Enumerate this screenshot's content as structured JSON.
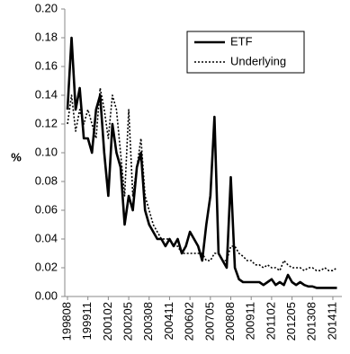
{
  "chart_data": {
    "type": "line",
    "ylabel": "%",
    "categories": [
      "199808",
      null,
      null,
      null,
      null,
      "199911",
      null,
      null,
      null,
      null,
      "200102",
      null,
      null,
      null,
      null,
      "200205",
      null,
      null,
      null,
      null,
      "200308",
      null,
      null,
      null,
      null,
      "200411",
      null,
      null,
      null,
      null,
      "200602",
      null,
      null,
      null,
      null,
      "200705",
      null,
      null,
      null,
      null,
      "200808",
      null,
      null,
      null,
      null,
      "200911",
      null,
      null,
      null,
      null,
      "201102",
      null,
      null,
      null,
      null,
      "201205",
      null,
      null,
      null,
      null,
      "201308",
      null,
      null,
      null,
      null,
      "201411",
      null
    ],
    "series": [
      {
        "name": "ETF",
        "color": "#000000",
        "style": "solid",
        "values": [
          0.13,
          0.18,
          0.13,
          0.145,
          0.11,
          0.11,
          0.1,
          0.13,
          0.14,
          0.1,
          0.07,
          0.12,
          0.1,
          0.09,
          0.05,
          0.07,
          0.06,
          0.09,
          0.1,
          0.06,
          0.05,
          0.045,
          0.04,
          0.04,
          0.035,
          0.04,
          0.035,
          0.04,
          0.03,
          0.035,
          0.045,
          0.04,
          0.035,
          0.025,
          0.05,
          0.07,
          0.125,
          0.03,
          0.025,
          0.02,
          0.083,
          0.02,
          0.012,
          0.01,
          0.01,
          0.01,
          0.01,
          0.01,
          0.008,
          0.01,
          0.012,
          0.008,
          0.01,
          0.008,
          0.015,
          0.01,
          0.008,
          0.01,
          0.008,
          0.007,
          0.007,
          0.006,
          0.006,
          0.006,
          0.006,
          0.006,
          0.006
        ]
      },
      {
        "name": "Underlying",
        "color": "#000000",
        "style": "dotted",
        "values": [
          0.12,
          0.14,
          0.115,
          0.13,
          0.12,
          0.13,
          0.12,
          0.11,
          0.145,
          0.13,
          0.11,
          0.14,
          0.13,
          0.1,
          0.07,
          0.13,
          0.07,
          0.09,
          0.11,
          0.07,
          0.06,
          0.05,
          0.045,
          0.04,
          0.04,
          0.04,
          0.035,
          0.035,
          0.03,
          0.03,
          0.03,
          0.03,
          0.03,
          0.03,
          0.025,
          0.025,
          0.03,
          0.03,
          0.025,
          0.025,
          0.035,
          0.035,
          0.03,
          0.028,
          0.025,
          0.025,
          0.022,
          0.022,
          0.02,
          0.022,
          0.02,
          0.02,
          0.018,
          0.025,
          0.022,
          0.02,
          0.02,
          0.02,
          0.018,
          0.02,
          0.02,
          0.018,
          0.018,
          0.02,
          0.018,
          0.018,
          0.02
        ]
      }
    ],
    "ylim": [
      0,
      0.2
    ],
    "yticks": [
      {
        "value": 0,
        "label": "0.00"
      },
      0.02,
      0.04,
      0.06,
      0.08,
      {
        "value": 0.1,
        "label": "0.10"
      },
      0.12,
      0.14,
      0.16,
      0.18,
      {
        "value": 0.2,
        "label": "0.20"
      }
    ],
    "grid": false,
    "legend": "upper right"
  }
}
